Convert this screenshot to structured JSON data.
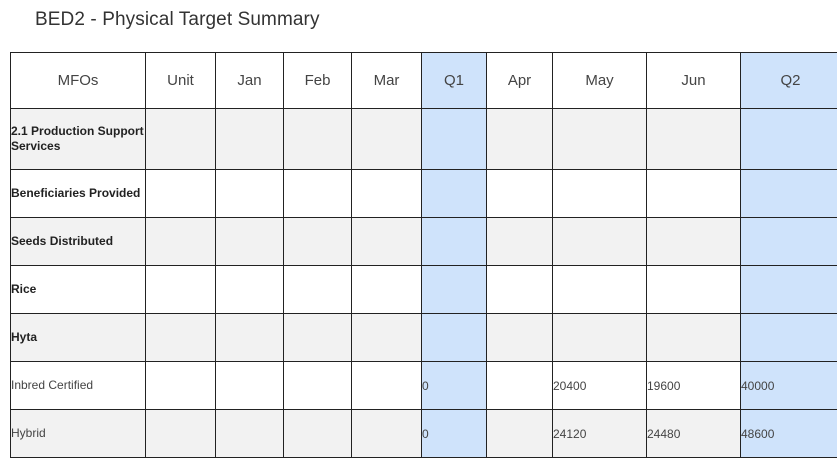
{
  "title": "BED2 - Physical Target Summary",
  "columns": [
    "MFOs",
    "Unit",
    "Jan",
    "Feb",
    "Mar",
    "Q1",
    "Apr",
    "May",
    "Jun",
    "Q2"
  ],
  "rows": [
    {
      "mfo": "2.1 Production Support Services",
      "cells": [
        "",
        "",
        "",
        "",
        "",
        "",
        "",
        "",
        ""
      ]
    },
    {
      "mfo": "Beneficiaries Provided",
      "cells": [
        "",
        "",
        "",
        "",
        "",
        "",
        "",
        "",
        ""
      ]
    },
    {
      "mfo": "Seeds Distributed",
      "cells": [
        "",
        "",
        "",
        "",
        "",
        "",
        "",
        "",
        ""
      ]
    },
    {
      "mfo": "Rice",
      "cells": [
        "",
        "",
        "",
        "",
        "",
        "",
        "",
        "",
        ""
      ]
    },
    {
      "mfo": "Hyta",
      "cells": [
        "",
        "",
        "",
        "",
        "",
        "",
        "",
        "",
        ""
      ]
    },
    {
      "mfo": "Inbred Certified",
      "cells": [
        "",
        "",
        "",
        "",
        "0",
        "",
        "20400",
        "19600",
        "40000"
      ]
    },
    {
      "mfo": "Hybrid",
      "cells": [
        "",
        "",
        "",
        "",
        "0",
        "",
        "24120",
        "24480",
        "48600"
      ]
    }
  ],
  "colors": {
    "quarter_highlight": "#cfe3fb",
    "alt_row": "#f2f2f2",
    "border": "#222222"
  }
}
